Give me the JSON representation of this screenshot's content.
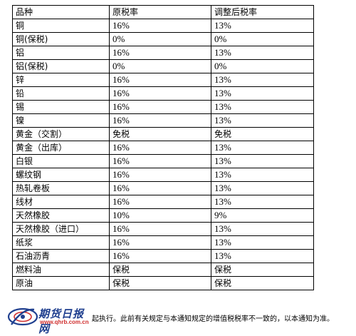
{
  "table": {
    "headers": [
      "品种",
      "原税率",
      "调整后税率"
    ],
    "rows": [
      [
        "铜",
        "16%",
        "13%"
      ],
      [
        "铜(保税)",
        "0%",
        "0%"
      ],
      [
        "铝",
        "16%",
        "13%"
      ],
      [
        "铝(保税)",
        "0%",
        "0%"
      ],
      [
        "锌",
        "16%",
        "13%"
      ],
      [
        "铅",
        "16%",
        "13%"
      ],
      [
        "锡",
        "16%",
        "13%"
      ],
      [
        "镍",
        "16%",
        "13%"
      ],
      [
        "黄金（交割）",
        "免税",
        "免税"
      ],
      [
        "黄金（出库）",
        "16%",
        "13%"
      ],
      [
        "白银",
        "16%",
        "13%"
      ],
      [
        "螺纹钢",
        "16%",
        "13%"
      ],
      [
        "热轧卷板",
        "16%",
        "13%"
      ],
      [
        "线材",
        "16%",
        "13%"
      ],
      [
        "天然橡胶",
        "10%",
        "9%"
      ],
      [
        "天然橡胶（进口）",
        "16%",
        "13%"
      ],
      [
        "纸浆",
        "16%",
        "13%"
      ],
      [
        "石油沥青",
        "16%",
        "13%"
      ],
      [
        "燃料油",
        "保税",
        "保税"
      ],
      [
        "原油",
        "保税",
        "保税"
      ]
    ]
  },
  "footer": {
    "logo_text": "期货日报网",
    "logo_url": "www.qhrb.com.cn",
    "note": "起执行。此前有关规定与本通知规定的增值税税率不一致的，以本通知为准。",
    "logo_color": "#1f3f8f",
    "url_color": "#d03030"
  }
}
